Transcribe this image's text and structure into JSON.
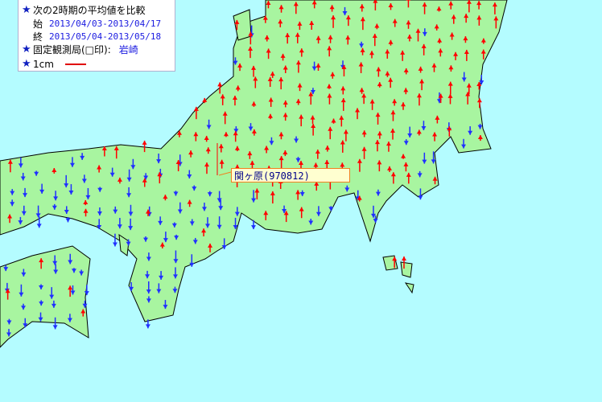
{
  "legend": {
    "title": "次の2時期の平均値を比較",
    "start_label": "始",
    "start_period": "2013/04/03-2013/04/17",
    "end_label": "終",
    "end_period": "2013/05/04-2013/05/18",
    "fixed_station_label": "固定観測局(□印):",
    "fixed_station": "岩崎",
    "scale_label": "1cm",
    "scale_color": "#e00000",
    "bullet_icon": "star-icon"
  },
  "tooltip": {
    "station": "関ヶ原(970812)"
  },
  "colors": {
    "sea": "#b4fcff",
    "land": "#a8f5a0",
    "up_vector": "#ff0000",
    "down_vector": "#2030ff",
    "boundary": "#107010"
  }
}
